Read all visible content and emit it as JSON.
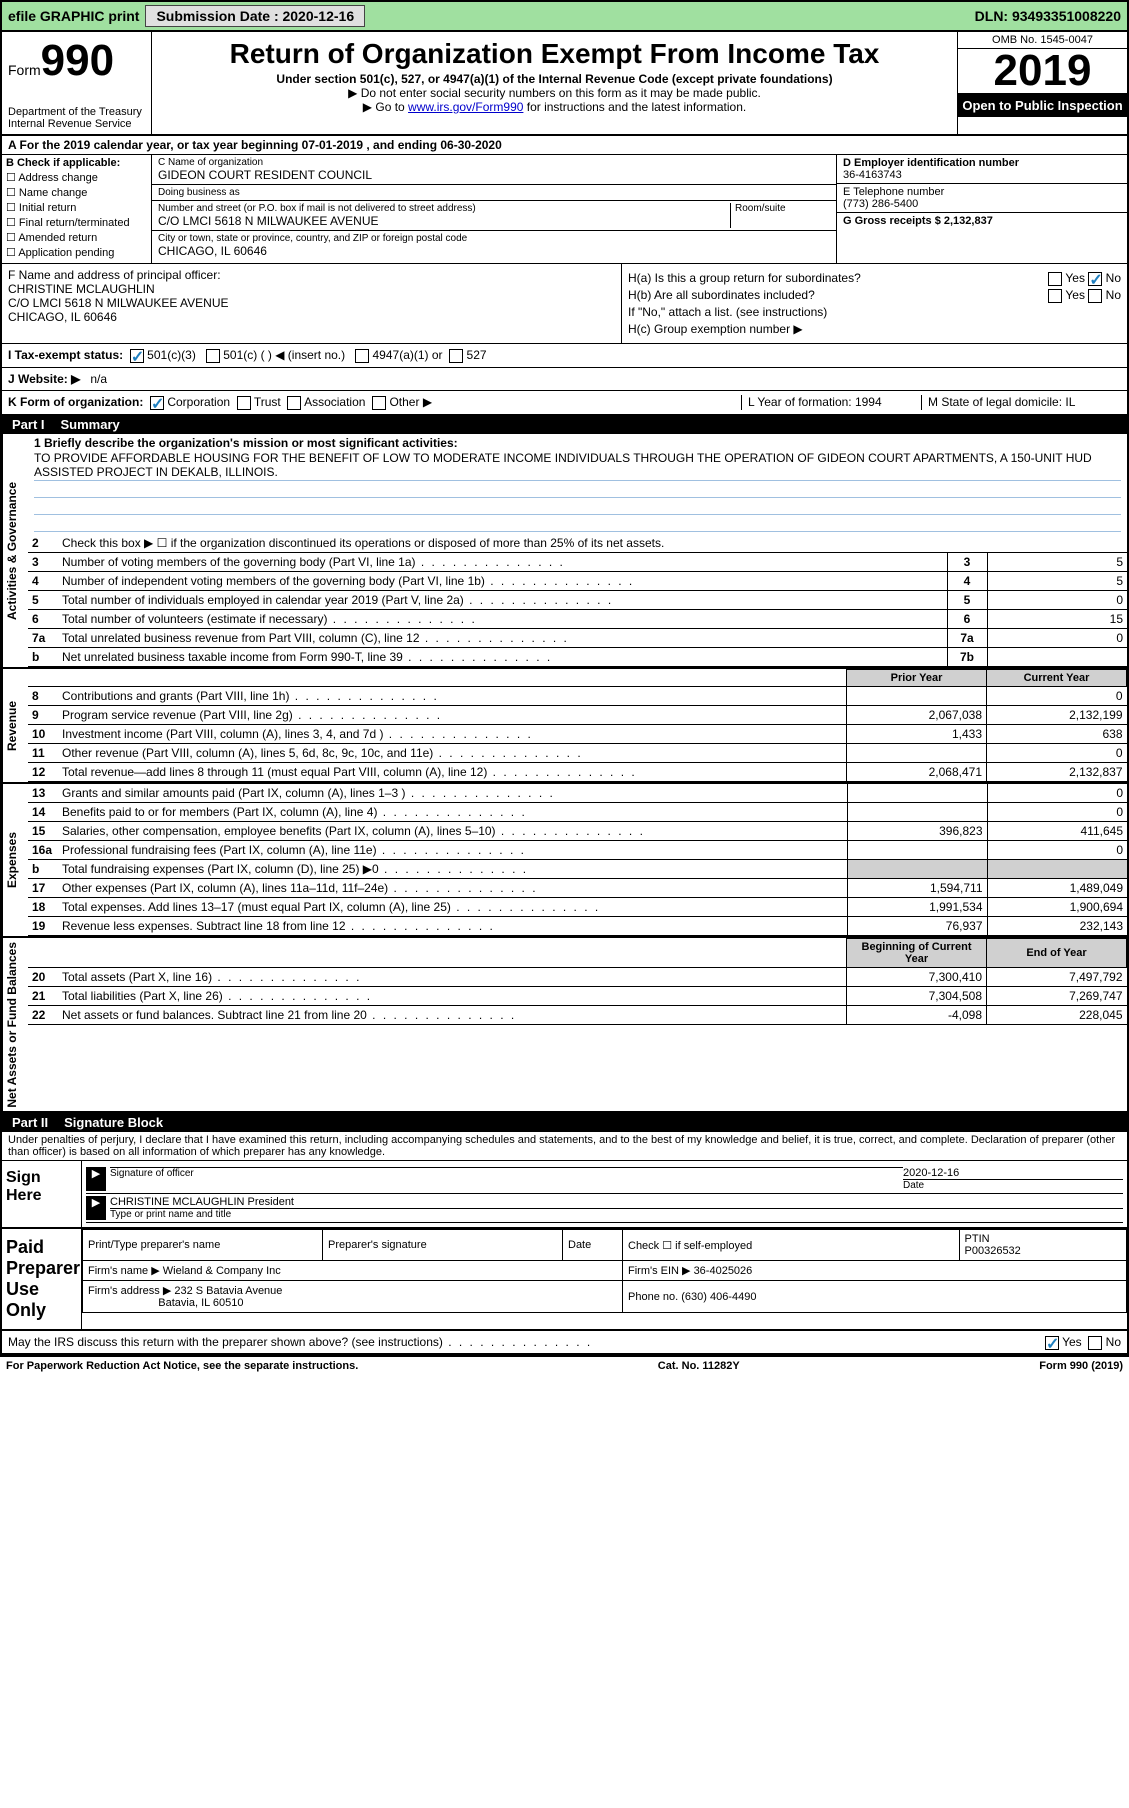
{
  "topbar": {
    "efile": "efile GRAPHIC print",
    "submission_label": "Submission Date : 2020-12-16",
    "dln": "DLN: 93493351008220"
  },
  "header": {
    "form_label": "Form",
    "form_number": "990",
    "dept": "Department of the Treasury",
    "irs": "Internal Revenue Service",
    "title": "Return of Organization Exempt From Income Tax",
    "sub1": "Under section 501(c), 527, or 4947(a)(1) of the Internal Revenue Code (except private foundations)",
    "sub2": "▶ Do not enter social security numbers on this form as it may be made public.",
    "sub3_pre": "▶ Go to ",
    "sub3_link": "www.irs.gov/Form990",
    "sub3_post": " for instructions and the latest information.",
    "omb": "OMB No. 1545-0047",
    "year": "2019",
    "inspection": "Open to Public Inspection"
  },
  "row_a": "A For the 2019 calendar year, or tax year beginning 07-01-2019    , and ending 06-30-2020",
  "col_b": {
    "label": "B Check if applicable:",
    "opts": [
      "Address change",
      "Name change",
      "Initial return",
      "Final return/terminated",
      "Amended return",
      "Application pending"
    ]
  },
  "col_c": {
    "name_label": "C Name of organization",
    "name": "GIDEON COURT RESIDENT COUNCIL",
    "dba_label": "Doing business as",
    "dba": "",
    "addr_label": "Number and street (or P.O. box if mail is not delivered to street address)",
    "room_label": "Room/suite",
    "addr": "C/O LMCI 5618 N MILWAUKEE AVENUE",
    "city_label": "City or town, state or province, country, and ZIP or foreign postal code",
    "city": "CHICAGO, IL  60646"
  },
  "col_d": {
    "ein_label": "D Employer identification number",
    "ein": "36-4163743",
    "tel_label": "E Telephone number",
    "tel": "(773) 286-5400",
    "gross_label": "G Gross receipts $ 2,132,837"
  },
  "col_f": {
    "label": "F  Name and address of principal officer:",
    "name": "CHRISTINE MCLAUGHLIN",
    "addr1": "C/O LMCI 5618 N MILWAUKEE AVENUE",
    "addr2": "CHICAGO, IL  60646"
  },
  "col_h": {
    "ha": "H(a)  Is this a group return for subordinates?",
    "hb": "H(b)  Are all subordinates included?",
    "hb_note": "If \"No,\" attach a list. (see instructions)",
    "hc": "H(c)  Group exemption number ▶",
    "yes": "Yes",
    "no": "No"
  },
  "row_i": {
    "label": "I  Tax-exempt status:",
    "opt1": "501(c)(3)",
    "opt2": "501(c) (  ) ◀ (insert no.)",
    "opt3": "4947(a)(1) or",
    "opt4": "527"
  },
  "row_j": {
    "label": "J  Website: ▶",
    "val": "n/a"
  },
  "row_k": {
    "label": "K Form of organization:",
    "opts": [
      "Corporation",
      "Trust",
      "Association",
      "Other ▶"
    ],
    "l": "L Year of formation: 1994",
    "m": "M State of legal domicile: IL"
  },
  "part1": {
    "label": "Part I",
    "title": "Summary"
  },
  "vtabs": {
    "gov": "Activities & Governance",
    "rev": "Revenue",
    "exp": "Expenses",
    "net": "Net Assets or Fund Balances"
  },
  "mission": {
    "label": "1   Briefly describe the organization's mission or most significant activities:",
    "text": "TO PROVIDE AFFORDABLE HOUSING FOR THE BENEFIT OF LOW TO MODERATE INCOME INDIVIDUALS THROUGH THE OPERATION OF GIDEON COURT APARTMENTS, A 150-UNIT HUD ASSISTED PROJECT IN DEKALB, ILLINOIS."
  },
  "gov_lines": [
    {
      "n": "2",
      "t": "Check this box ▶ ☐  if the organization discontinued its operations or disposed of more than 25% of its net assets."
    },
    {
      "n": "3",
      "t": "Number of voting members of the governing body (Part VI, line 1a)",
      "box": "3",
      "v": "5"
    },
    {
      "n": "4",
      "t": "Number of independent voting members of the governing body (Part VI, line 1b)",
      "box": "4",
      "v": "5"
    },
    {
      "n": "5",
      "t": "Total number of individuals employed in calendar year 2019 (Part V, line 2a)",
      "box": "5",
      "v": "0"
    },
    {
      "n": "6",
      "t": "Total number of volunteers (estimate if necessary)",
      "box": "6",
      "v": "15"
    },
    {
      "n": "7a",
      "t": "Total unrelated business revenue from Part VIII, column (C), line 12",
      "box": "7a",
      "v": "0"
    },
    {
      "n": "b",
      "t": "Net unrelated business taxable income from Form 990-T, line 39",
      "box": "7b",
      "v": ""
    }
  ],
  "col_headers": {
    "py": "Prior Year",
    "cy": "Current Year"
  },
  "rev_lines": [
    {
      "n": "8",
      "t": "Contributions and grants (Part VIII, line 1h)",
      "py": "",
      "cy": "0"
    },
    {
      "n": "9",
      "t": "Program service revenue (Part VIII, line 2g)",
      "py": "2,067,038",
      "cy": "2,132,199"
    },
    {
      "n": "10",
      "t": "Investment income (Part VIII, column (A), lines 3, 4, and 7d )",
      "py": "1,433",
      "cy": "638"
    },
    {
      "n": "11",
      "t": "Other revenue (Part VIII, column (A), lines 5, 6d, 8c, 9c, 10c, and 11e)",
      "py": "",
      "cy": "0"
    },
    {
      "n": "12",
      "t": "Total revenue—add lines 8 through 11 (must equal Part VIII, column (A), line 12)",
      "py": "2,068,471",
      "cy": "2,132,837"
    }
  ],
  "exp_lines": [
    {
      "n": "13",
      "t": "Grants and similar amounts paid (Part IX, column (A), lines 1–3 )",
      "py": "",
      "cy": "0"
    },
    {
      "n": "14",
      "t": "Benefits paid to or for members (Part IX, column (A), line 4)",
      "py": "",
      "cy": "0"
    },
    {
      "n": "15",
      "t": "Salaries, other compensation, employee benefits (Part IX, column (A), lines 5–10)",
      "py": "396,823",
      "cy": "411,645"
    },
    {
      "n": "16a",
      "t": "Professional fundraising fees (Part IX, column (A), line 11e)",
      "py": "",
      "cy": "0"
    },
    {
      "n": "b",
      "t": "Total fundraising expenses (Part IX, column (D), line 25) ▶0",
      "py": "shade",
      "cy": "shade"
    },
    {
      "n": "17",
      "t": "Other expenses (Part IX, column (A), lines 11a–11d, 11f–24e)",
      "py": "1,594,711",
      "cy": "1,489,049"
    },
    {
      "n": "18",
      "t": "Total expenses. Add lines 13–17 (must equal Part IX, column (A), line 25)",
      "py": "1,991,534",
      "cy": "1,900,694"
    },
    {
      "n": "19",
      "t": "Revenue less expenses. Subtract line 18 from line 12",
      "py": "76,937",
      "cy": "232,143"
    }
  ],
  "net_headers": {
    "py": "Beginning of Current Year",
    "cy": "End of Year"
  },
  "net_lines": [
    {
      "n": "20",
      "t": "Total assets (Part X, line 16)",
      "py": "7,300,410",
      "cy": "7,497,792"
    },
    {
      "n": "21",
      "t": "Total liabilities (Part X, line 26)",
      "py": "7,304,508",
      "cy": "7,269,747"
    },
    {
      "n": "22",
      "t": "Net assets or fund balances. Subtract line 21 from line 20",
      "py": "-4,098",
      "cy": "228,045"
    }
  ],
  "part2": {
    "label": "Part II",
    "title": "Signature Block"
  },
  "penalties": "Under penalties of perjury, I declare that I have examined this return, including accompanying schedules and statements, and to the best of my knowledge and belief, it is true, correct, and complete. Declaration of preparer (other than officer) is based on all information of which preparer has any knowledge.",
  "sign": {
    "label": "Sign Here",
    "sig_label": "Signature of officer",
    "date_label": "Date",
    "date": "2020-12-16",
    "name": "CHRISTINE MCLAUGHLIN  President",
    "name_label": "Type or print name and title"
  },
  "prep": {
    "label": "Paid Preparer Use Only",
    "pt_name": "Print/Type preparer's name",
    "pt_sig": "Preparer's signature",
    "pt_date": "Date",
    "check": "Check ☐ if self-employed",
    "ptin_label": "PTIN",
    "ptin": "P00326532",
    "firm_name_label": "Firm's name    ▶",
    "firm_name": "Wieland & Company Inc",
    "firm_ein_label": "Firm's EIN ▶",
    "firm_ein": "36-4025026",
    "firm_addr_label": "Firm's address ▶",
    "firm_addr": "232 S Batavia Avenue",
    "firm_city": "Batavia, IL  60510",
    "phone_label": "Phone no.",
    "phone": "(630) 406-4490"
  },
  "discuss": {
    "text": "May the IRS discuss this return with the preparer shown above? (see instructions)",
    "yes": "Yes",
    "no": "No"
  },
  "footer": {
    "left": "For Paperwork Reduction Act Notice, see the separate instructions.",
    "mid": "Cat. No. 11282Y",
    "right": "Form 990 (2019)"
  }
}
